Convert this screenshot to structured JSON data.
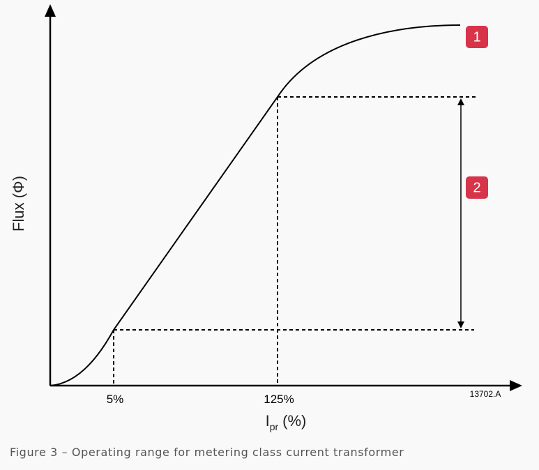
{
  "diagram": {
    "y_axis_label": "Flux (Φ)",
    "x_axis_label": {
      "main": "I",
      "subscript": "pr",
      "suffix": "(%)"
    },
    "x_ticks": [
      "5%",
      "125%"
    ],
    "figure_code": "13702.A",
    "badges": [
      "1",
      "2"
    ]
  },
  "caption": "Figure 3 – Operating range for metering class current transformer"
}
